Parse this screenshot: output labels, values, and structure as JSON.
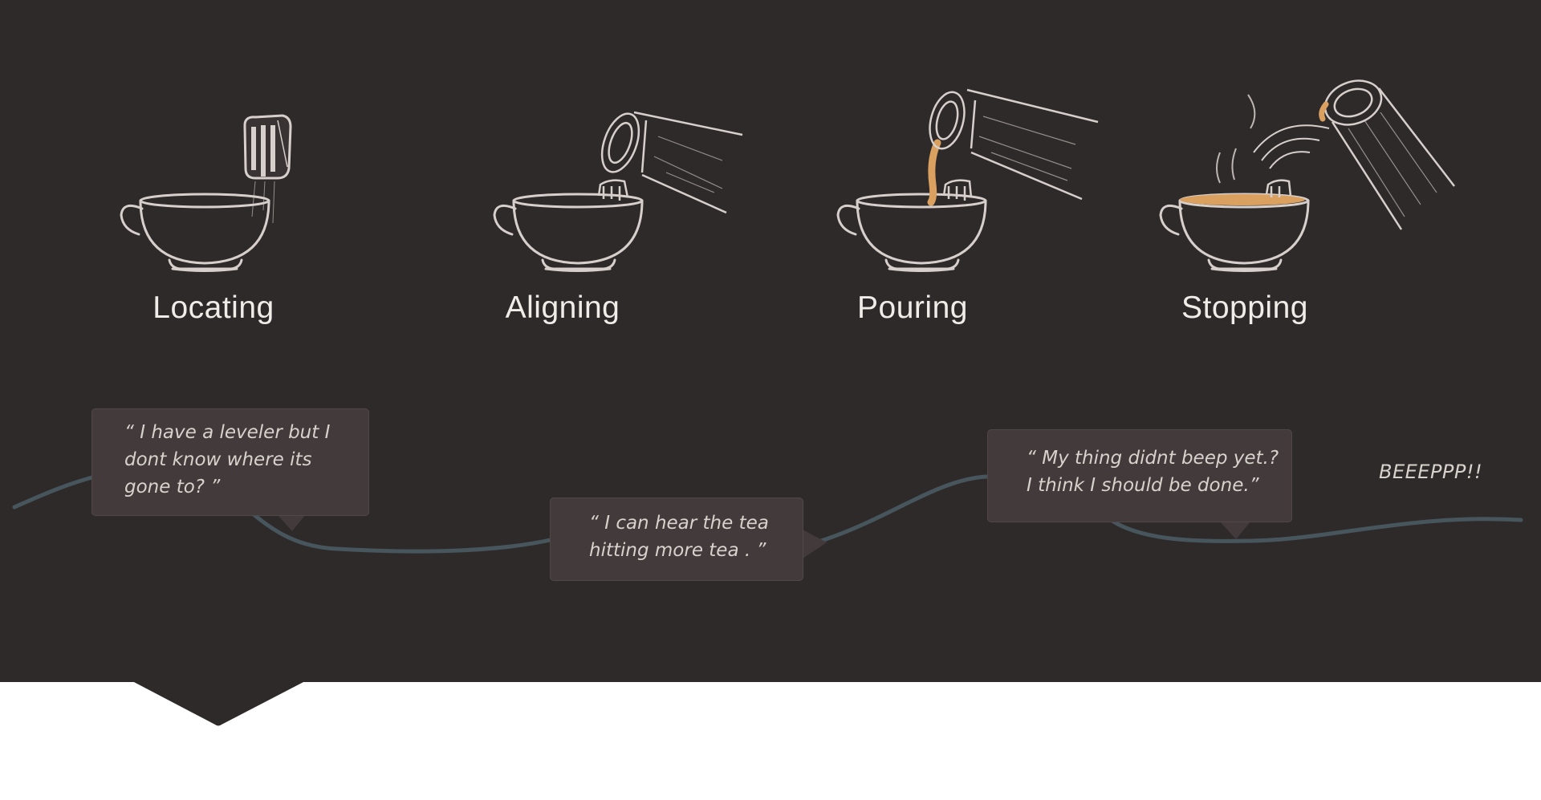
{
  "stages": [
    {
      "label": "Locating"
    },
    {
      "label": "Aligning"
    },
    {
      "label": "Pouring"
    },
    {
      "label": "Stopping"
    }
  ],
  "quotes": [
    {
      "lines": [
        "“ I have a leveler but I",
        "dont know where its",
        "gone to? ”"
      ]
    },
    {
      "lines": [
        "“ I can hear the tea",
        "hitting more tea . ”"
      ]
    },
    {
      "lines": [
        "“ My thing didnt beep yet.?",
        "I think I should be done.”"
      ]
    }
  ],
  "sound_effect": "BEEEPPP!!",
  "colors": {
    "panel_background": "#2f2a2a",
    "bubble_background": "#433b3b",
    "tea": "#d9a060",
    "timeline": "#4a5a62",
    "sketch_line": "#d6cfcb"
  },
  "icons": [
    "teacup-icon",
    "leveler-device-icon",
    "tea-kettle-icon",
    "tea-stream-icon",
    "steam-icon",
    "sound-waves-icon"
  ]
}
